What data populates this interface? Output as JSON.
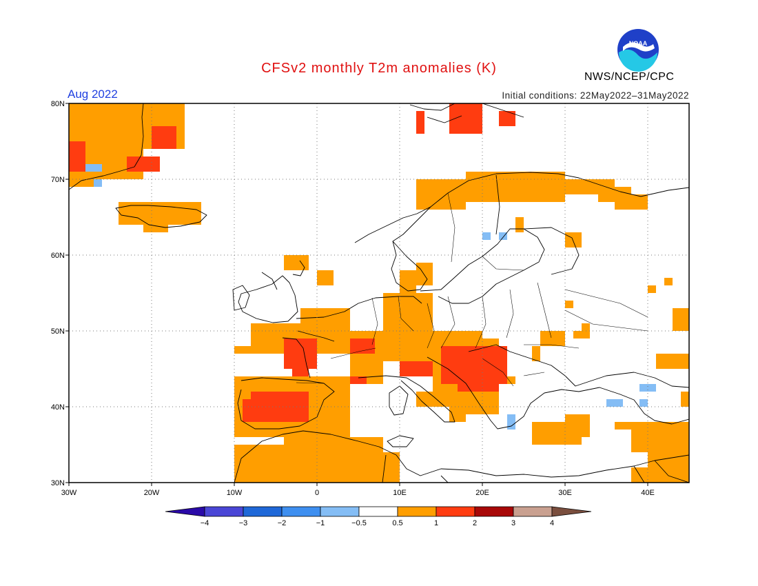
{
  "title": "CFSv2 monthly T2m anomalies (K)",
  "period": "Aug 2022",
  "initial_conditions": "Initial conditions: 22May2022–31May2022",
  "agency": "NWS/NCEP/CPC",
  "logo_text": "NOAA",
  "map": {
    "lon_range": [
      -30,
      45
    ],
    "lat_range": [
      30,
      80
    ],
    "x_ticks": [
      {
        "value": -30,
        "label": "30W"
      },
      {
        "value": -20,
        "label": "20W"
      },
      {
        "value": -10,
        "label": "10W"
      },
      {
        "value": 0,
        "label": "0"
      },
      {
        "value": 10,
        "label": "10E"
      },
      {
        "value": 20,
        "label": "20E"
      },
      {
        "value": 30,
        "label": "30E"
      },
      {
        "value": 40,
        "label": "40E"
      }
    ],
    "y_ticks": [
      {
        "value": 30,
        "label": "30N"
      },
      {
        "value": 40,
        "label": "40N"
      },
      {
        "value": 50,
        "label": "50N"
      },
      {
        "value": 60,
        "label": "60N"
      },
      {
        "value": 70,
        "label": "70N"
      },
      {
        "value": 80,
        "label": "80N"
      }
    ],
    "grid": true
  },
  "colorbar": {
    "labels": [
      "−4",
      "−3",
      "−2",
      "−1",
      "−0.5",
      "0.5",
      "1",
      "2",
      "3",
      "4"
    ],
    "colors": [
      "#2a0aa8",
      "#4a46d6",
      "#1f68d8",
      "#3e8ff0",
      "#84bdf5",
      "#ffffff",
      "#ff9e00",
      "#ff3c10",
      "#a80808",
      "#c9a090",
      "#7a4e3e"
    ]
  },
  "anomaly_regions": [
    {
      "category": "0.5 to 1",
      "color": "#ff9e00",
      "cells": [
        [
          -30,
          74,
          -16,
          80
        ],
        [
          -30,
          70,
          -21,
          74
        ],
        [
          -30,
          69,
          -27,
          70
        ],
        [
          -24,
          64,
          -14,
          67
        ],
        [
          -21,
          63,
          -18,
          64
        ],
        [
          -8,
          48,
          -2,
          51
        ],
        [
          -10,
          47,
          -4,
          48
        ],
        [
          -2,
          47,
          4,
          53
        ],
        [
          4,
          43,
          8,
          50
        ],
        [
          8,
          46,
          14,
          55
        ],
        [
          14,
          45,
          20,
          50
        ],
        [
          20,
          45,
          22,
          49
        ],
        [
          10,
          55,
          12,
          58
        ],
        [
          12,
          56,
          14,
          59
        ],
        [
          0,
          56,
          2,
          58
        ],
        [
          -4,
          58,
          -1,
          60
        ],
        [
          -10,
          36,
          4,
          44
        ],
        [
          -3,
          43,
          0,
          44
        ],
        [
          -10,
          30,
          -4,
          35
        ],
        [
          -4,
          30,
          8,
          36
        ],
        [
          8,
          30,
          10,
          34
        ],
        [
          14,
          42,
          18,
          46
        ],
        [
          16,
          38,
          18,
          42
        ],
        [
          12,
          40,
          16,
          42
        ],
        [
          18,
          39,
          22,
          43
        ],
        [
          22,
          43,
          24,
          44
        ],
        [
          18,
          67,
          30,
          71
        ],
        [
          12,
          66,
          18,
          70
        ],
        [
          28,
          68,
          36,
          70
        ],
        [
          34,
          67,
          38,
          69
        ],
        [
          36,
          66,
          40,
          68
        ],
        [
          24,
          63,
          25,
          65
        ],
        [
          30,
          61,
          32,
          63
        ],
        [
          26,
          35,
          32,
          38
        ],
        [
          30,
          36,
          33,
          39
        ],
        [
          36,
          37,
          38,
          38
        ],
        [
          41,
          45,
          45,
          47
        ],
        [
          38,
          34,
          45,
          38
        ],
        [
          40,
          32,
          45,
          34
        ],
        [
          38,
          30,
          45,
          32
        ],
        [
          27,
          48,
          30,
          50
        ],
        [
          31,
          49,
          33,
          50
        ],
        [
          30,
          53,
          31,
          54
        ],
        [
          32,
          50,
          33,
          51
        ],
        [
          40,
          55,
          41,
          56
        ],
        [
          42,
          56,
          43,
          57
        ],
        [
          43,
          50,
          45,
          53
        ],
        [
          26,
          46,
          27,
          48
        ],
        [
          44,
          40,
          45,
          42
        ]
      ]
    },
    {
      "category": "1 to 2",
      "color": "#ff3c10",
      "cells": [
        [
          -30,
          71,
          -28,
          75
        ],
        [
          -20,
          74,
          -17,
          77
        ],
        [
          -23,
          71,
          -19,
          73
        ],
        [
          -8,
          38,
          -1,
          42
        ],
        [
          -9,
          38,
          -8,
          41
        ],
        [
          -4,
          45,
          0,
          49
        ],
        [
          -3,
          44,
          -1,
          45
        ],
        [
          4,
          47,
          7,
          49
        ],
        [
          4,
          43,
          6,
          44
        ],
        [
          10,
          44,
          14,
          46
        ],
        [
          15,
          43,
          23,
          48
        ],
        [
          17,
          42,
          22,
          43
        ],
        [
          16,
          76,
          20,
          80
        ],
        [
          12,
          76,
          13,
          79
        ],
        [
          22,
          77,
          24,
          79
        ]
      ]
    },
    {
      "category": "−1 to −0.5",
      "color": "#84bdf5",
      "cells": [
        [
          -28,
          71,
          -26,
          72
        ],
        [
          -27,
          69,
          -26,
          70
        ],
        [
          20,
          62,
          21,
          63
        ],
        [
          22,
          62,
          23,
          63
        ],
        [
          35,
          40,
          37,
          41
        ],
        [
          39,
          42,
          41,
          43
        ],
        [
          39,
          40,
          40,
          41
        ],
        [
          23,
          37,
          24,
          39
        ]
      ]
    }
  ]
}
